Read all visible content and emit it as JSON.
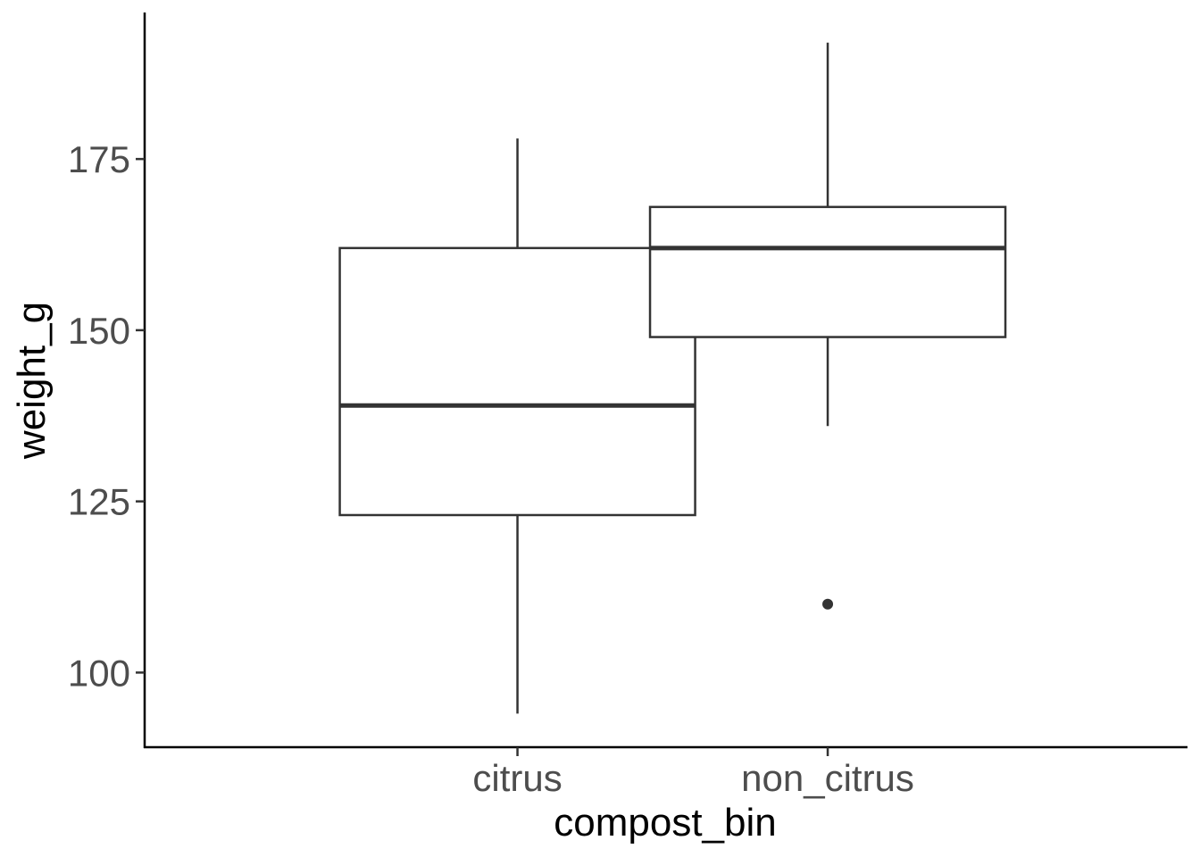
{
  "chart_data": {
    "type": "boxplot",
    "title": "",
    "xlabel": "compost_bin",
    "ylabel": "weight_g",
    "categories": [
      "citrus",
      "non_citrus"
    ],
    "boxes": [
      {
        "category": "citrus",
        "min": 94,
        "q1": 123,
        "median": 139,
        "q3": 162,
        "max": 178,
        "outliers": []
      },
      {
        "category": "non_citrus",
        "min": 136,
        "q1": 149,
        "median": 162,
        "q3": 168,
        "max": 192,
        "outliers": [
          110
        ]
      }
    ],
    "yticks": [
      100,
      125,
      150,
      175
    ],
    "ylim": [
      89.1,
      196.4
    ],
    "grid": false,
    "legend": "none"
  }
}
